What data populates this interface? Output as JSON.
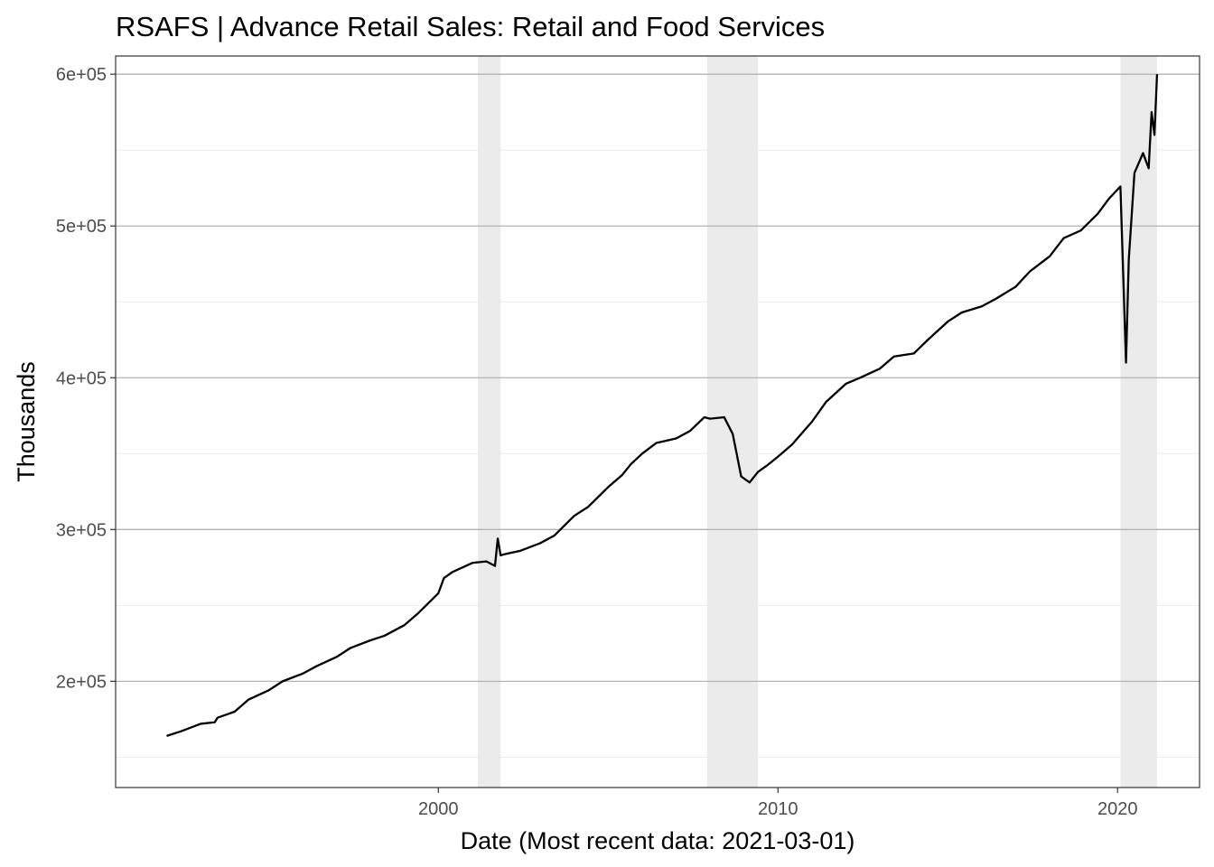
{
  "chart_data": {
    "type": "line",
    "title": "RSAFS | Advance Retail Sales: Retail and Food Services",
    "xlabel": "Date (Most recent data: 2021-03-01)",
    "ylabel": "Thousands",
    "x_type": "date",
    "xlim": [
      "1990-07-01",
      "2022-06-01"
    ],
    "ylim": [
      130000,
      612000
    ],
    "x_ticks": [
      {
        "value": "2000-01-01",
        "label": "2000"
      },
      {
        "value": "2010-01-01",
        "label": "2010"
      },
      {
        "value": "2020-01-01",
        "label": "2020"
      }
    ],
    "y_ticks": [
      {
        "value": 200000,
        "label": "2e+05"
      },
      {
        "value": 300000,
        "label": "3e+05"
      },
      {
        "value": 400000,
        "label": "4e+05"
      },
      {
        "value": 500000,
        "label": "5e+05"
      },
      {
        "value": 600000,
        "label": "6e+05"
      }
    ],
    "grid": true,
    "legend": "none",
    "shaded_periods": [
      {
        "start": "2001-03-01",
        "end": "2001-11-01"
      },
      {
        "start": "2007-12-01",
        "end": "2009-06-01"
      },
      {
        "start": "2020-02-01",
        "end": "2021-03-01"
      }
    ],
    "colors": {
      "line": "#000000",
      "shade": "#ebebeb",
      "grid": "#b3b3b3",
      "border": "#333333"
    },
    "series": [
      {
        "x": [
          "1992-01-01",
          "1992-06-01",
          "1993-01-01",
          "1993-06-01",
          "1993-07-01",
          "1994-01-01",
          "1994-06-01",
          "1995-01-01",
          "1995-06-01",
          "1996-01-01",
          "1996-06-01",
          "1997-01-01",
          "1997-06-01",
          "1998-01-01",
          "1998-06-01",
          "1999-01-01",
          "1999-06-01",
          "2000-01-01",
          "2000-03-01",
          "2000-06-01",
          "2001-01-01",
          "2001-06-01",
          "2001-09-01",
          "2001-10-01",
          "2001-11-01",
          "2002-01-01",
          "2002-06-01",
          "2003-01-01",
          "2003-06-01",
          "2004-01-01",
          "2004-06-01",
          "2005-01-01",
          "2005-06-01",
          "2005-09-01",
          "2006-01-01",
          "2006-06-01",
          "2007-01-01",
          "2007-06-01",
          "2007-11-01",
          "2008-01-01",
          "2008-06-01",
          "2008-09-01",
          "2008-12-01",
          "2009-03-01",
          "2009-06-01",
          "2009-09-01",
          "2010-01-01",
          "2010-06-01",
          "2011-01-01",
          "2011-06-01",
          "2012-01-01",
          "2012-06-01",
          "2013-01-01",
          "2013-06-01",
          "2014-01-01",
          "2014-06-01",
          "2015-01-01",
          "2015-06-01",
          "2016-01-01",
          "2016-06-01",
          "2017-01-01",
          "2017-06-01",
          "2018-01-01",
          "2018-06-01",
          "2018-12-01",
          "2019-06-01",
          "2019-10-01",
          "2020-02-01",
          "2020-04-01",
          "2020-05-01",
          "2020-07-01",
          "2020-10-01",
          "2020-12-01",
          "2021-01-01",
          "2021-02-01",
          "2021-03-01"
        ],
        "values": [
          164000,
          167000,
          172000,
          173000,
          176000,
          180000,
          188000,
          194000,
          200000,
          205000,
          210000,
          216000,
          222000,
          227000,
          230000,
          237000,
          245000,
          258000,
          268000,
          272000,
          278000,
          279000,
          276000,
          294000,
          283000,
          284000,
          286000,
          291000,
          296000,
          309000,
          315000,
          328000,
          336000,
          343000,
          350000,
          357000,
          360000,
          365000,
          374000,
          373000,
          374000,
          363000,
          335000,
          331000,
          338000,
          342000,
          348000,
          356000,
          371000,
          384000,
          396000,
          400000,
          406000,
          414000,
          416000,
          425000,
          437000,
          443000,
          447000,
          452000,
          460000,
          470000,
          480000,
          492000,
          497000,
          508000,
          518000,
          526000,
          410000,
          478000,
          535000,
          548000,
          538000,
          575000,
          560000,
          600000
        ]
      }
    ]
  }
}
